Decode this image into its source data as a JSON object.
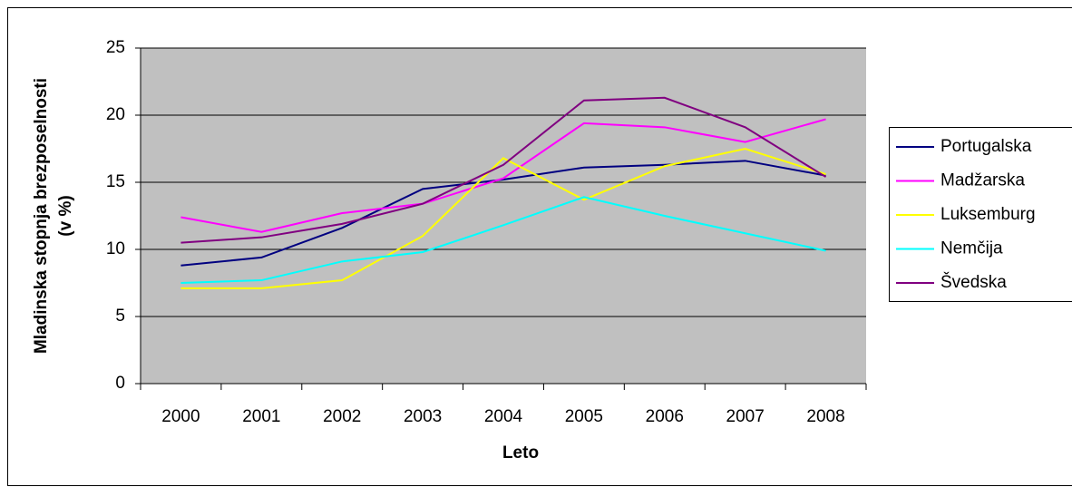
{
  "chart_data": {
    "type": "line",
    "categories": [
      "2000",
      "2001",
      "2002",
      "2003",
      "2004",
      "2005",
      "2006",
      "2007",
      "2008"
    ],
    "series": [
      {
        "name": "Portugalska",
        "color": "#000080",
        "values": [
          8.8,
          9.4,
          11.6,
          14.5,
          15.2,
          16.1,
          16.3,
          16.6,
          15.5
        ]
      },
      {
        "name": "Madžarska",
        "color": "#ff00ff",
        "values": [
          12.4,
          11.3,
          12.7,
          13.4,
          15.3,
          19.4,
          19.1,
          18.0,
          19.7
        ]
      },
      {
        "name": "Luksemburg",
        "color": "#ffff00",
        "values": [
          7.1,
          7.1,
          7.7,
          11.0,
          16.8,
          13.7,
          16.2,
          17.5,
          15.6
        ]
      },
      {
        "name": "Nemčija",
        "color": "#00ffff",
        "values": [
          7.5,
          7.7,
          9.1,
          9.8,
          11.8,
          13.9,
          12.5,
          11.2,
          9.9
        ]
      },
      {
        "name": "Švedska",
        "color": "#800080",
        "values": [
          10.5,
          10.9,
          11.9,
          13.4,
          16.3,
          21.1,
          21.3,
          19.1,
          15.4
        ]
      }
    ],
    "xlabel": "Leto",
    "ylabel": [
      "Mladinska stopnja brezposelnosti",
      "(v %)"
    ],
    "ylim": [
      0,
      25
    ],
    "yticks": [
      0,
      5,
      10,
      15,
      20,
      25
    ],
    "grid": true,
    "legend": "right"
  }
}
